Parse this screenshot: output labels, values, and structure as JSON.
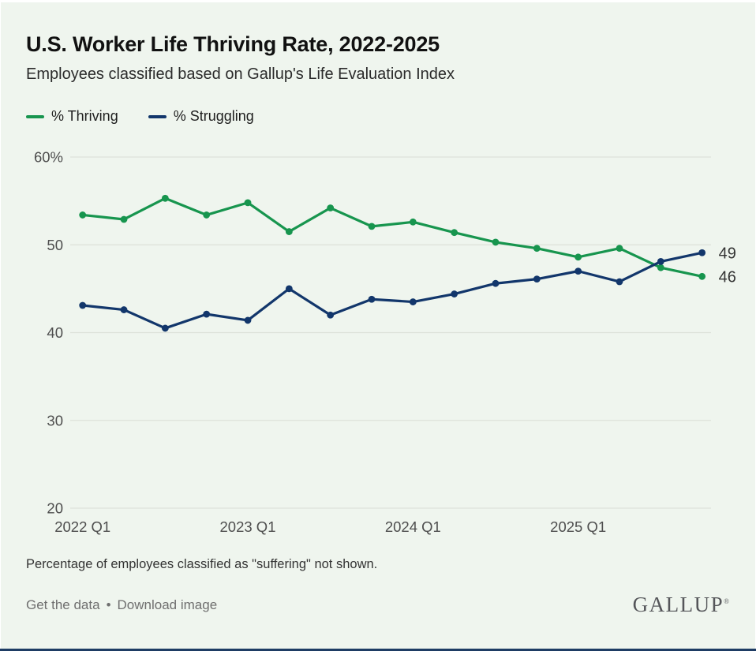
{
  "page": {
    "title": "U.S. Worker Life Thriving Rate, 2022-2025",
    "subtitle": "Employees classified based on Gallup's Life Evaluation Index",
    "note": "Percentage of employees classified as \"suffering\" not shown.",
    "footer": {
      "get_data_label": "Get the data",
      "separator": "•",
      "download_label": "Download image",
      "brand": "GALLUP",
      "brand_mark": "®"
    }
  },
  "colors": {
    "background": "#EFF5EE",
    "thriving": "#17954E",
    "struggling": "#12366B",
    "gridline": "#DDE2DA",
    "axis_text": "#4E4E4E",
    "end_label_text": "#333333",
    "bottom_bar": "#1E3C64"
  },
  "chart_data": {
    "type": "line",
    "title": "U.S. Worker Life Thriving Rate, 2022-2025",
    "subtitle": "Employees classified based on Gallup's Life Evaluation Index",
    "x_categories": [
      "2022 Q1",
      "2022 Q2",
      "2022 Q3",
      "2022 Q4",
      "2023 Q1",
      "2023 Q2",
      "2023 Q3",
      "2023 Q4",
      "2024 Q1",
      "2024 Q2",
      "2024 Q3",
      "2024 Q4",
      "2025 Q1",
      "2025 Q2",
      "2025 Q3",
      "2025 Q4"
    ],
    "x_tick_labels": [
      "2022 Q1",
      "2023 Q1",
      "2024 Q1",
      "2025 Q1"
    ],
    "x_tick_indices": [
      0,
      4,
      8,
      12
    ],
    "y_ticks": [
      60,
      50,
      40,
      30,
      20
    ],
    "y_tick_labels": [
      "60%",
      "50",
      "40",
      "30",
      "20"
    ],
    "ylim": [
      20,
      62
    ],
    "grid": "horizontal",
    "legend_position": "top-left",
    "series": [
      {
        "name": "% Thriving",
        "color": "#17954E",
        "values": [
          53.4,
          52.9,
          55.3,
          53.4,
          54.8,
          51.5,
          54.2,
          52.1,
          52.6,
          51.4,
          50.3,
          49.6,
          48.6,
          49.6,
          47.4,
          46.4
        ],
        "end_label": "46"
      },
      {
        "name": "% Struggling",
        "color": "#12366B",
        "values": [
          43.1,
          42.6,
          40.5,
          42.1,
          41.4,
          45.0,
          42.0,
          43.8,
          43.5,
          44.4,
          45.6,
          46.1,
          47.0,
          45.8,
          48.1,
          49.1
        ],
        "end_label": "49"
      }
    ]
  }
}
